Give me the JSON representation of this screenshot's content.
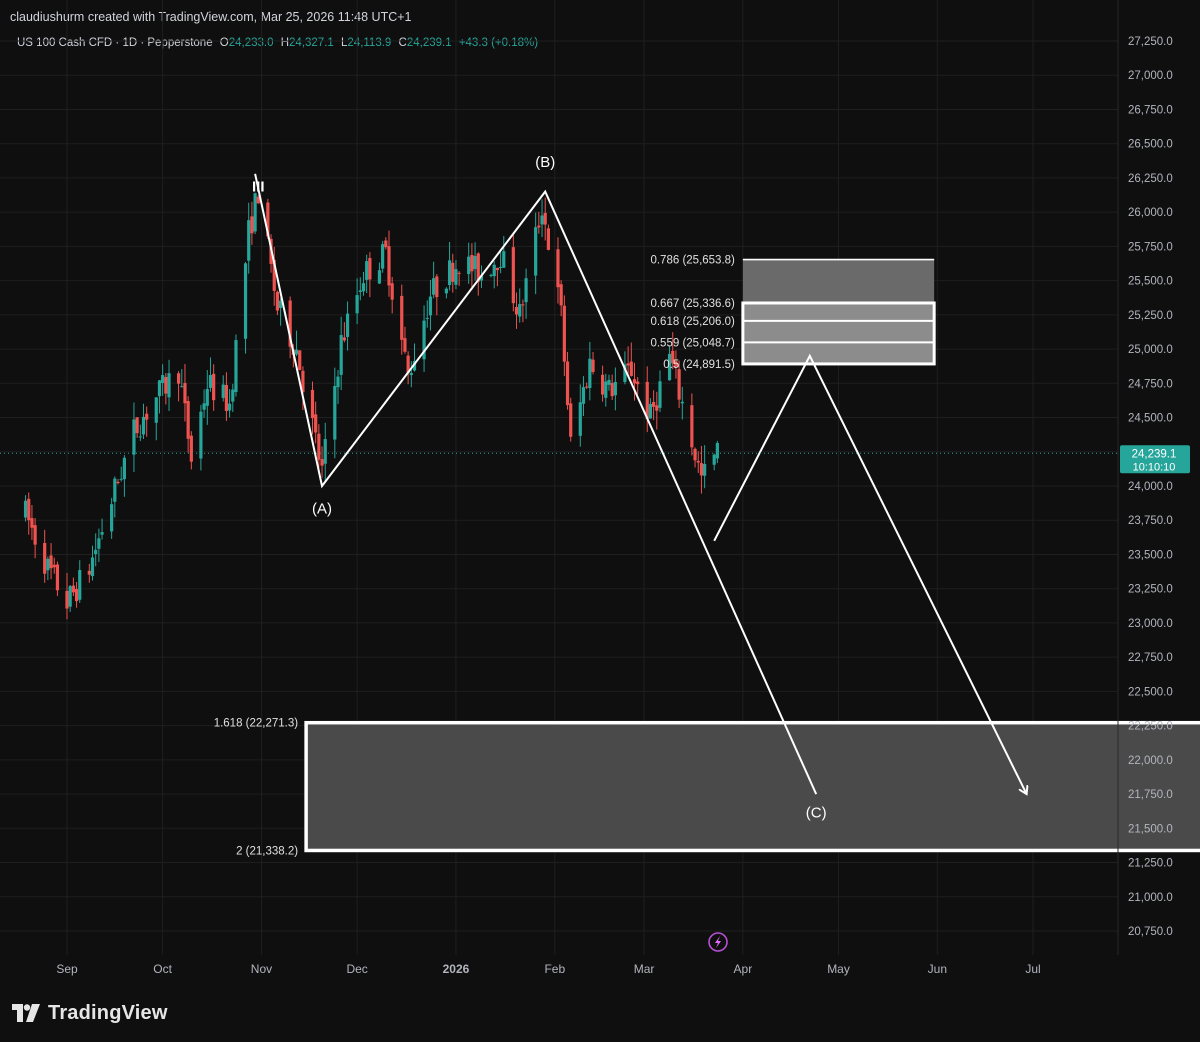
{
  "header": {
    "attribution": "claudiushurm created with TradingView.com, Mar 25, 2026 11:48 UTC+1"
  },
  "legend": {
    "symbol": "US 100 Cash CFD · 1D · Pepperstone",
    "open_label": "O",
    "open": "24,233.0",
    "high_label": "H",
    "high": "24,327.1",
    "low_label": "L",
    "low": "24,113.9",
    "close_label": "C",
    "close": "24,239.1",
    "change": "+43.3 (+0.18%)"
  },
  "footer": {
    "logo_text": "TradingView",
    "logo_icon": "tradingview-logo-icon"
  },
  "colors": {
    "background": "#0f0f0f",
    "grid": "#1f1f1f",
    "up": "#26a69a",
    "down": "#ef5350",
    "drawing": "#ffffff",
    "zone_fill": "#4a4a4a",
    "price_tag": "#26a69a"
  },
  "chart_data": {
    "type": "candlestick",
    "title": "",
    "xlabel": "",
    "ylabel": "",
    "ylim": [
      20600,
      27350
    ],
    "x_tick_labels": [
      "Sep",
      "Oct",
      "Nov",
      "Dec",
      "2026",
      "Feb",
      "Mar",
      "Apr",
      "May",
      "Jun",
      "Jul"
    ],
    "y_tick_labels": [
      "27,250.0",
      "27,000.0",
      "26,750.0",
      "26,500.0",
      "26,250.0",
      "26,000.0",
      "25,750.0",
      "25,500.0",
      "25,250.0",
      "25,000.0",
      "24,750.0",
      "24,500.0",
      "24,250.0",
      "24,000.0",
      "23,750.0",
      "23,500.0",
      "23,250.0",
      "23,000.0",
      "22,750.0",
      "22,500.0",
      "22,250.0",
      "22,000.0",
      "21,750.0",
      "21,500.0",
      "21,250.0",
      "21,000.0",
      "20,750.0"
    ],
    "y_tick_values": [
      27250,
      27000,
      26750,
      26500,
      26250,
      26000,
      25750,
      25500,
      25250,
      25000,
      24750,
      24500,
      24250,
      24000,
      23750,
      23500,
      23250,
      23000,
      22750,
      22500,
      22250,
      22000,
      21750,
      21500,
      21250,
      21000,
      20750
    ],
    "last_price": {
      "value": 24239.1,
      "label": "24,239.1",
      "countdown": "10:10:10"
    },
    "price_path": [
      [
        "2025-08-19",
        23800
      ],
      [
        "2025-08-26",
        23400
      ],
      [
        "2025-09-01",
        23150
      ],
      [
        "2025-09-08",
        23400
      ],
      [
        "2025-09-15",
        23900
      ],
      [
        "2025-09-22",
        24400
      ],
      [
        "2025-09-29",
        24650
      ],
      [
        "2025-10-06",
        24850
      ],
      [
        "2025-10-10",
        24200
      ],
      [
        "2025-10-15",
        24750
      ],
      [
        "2025-10-22",
        24600
      ],
      [
        "2025-10-28",
        25850
      ],
      [
        "2025-10-31",
        26150
      ],
      [
        "2025-11-06",
        25300
      ],
      [
        "2025-11-12",
        25000
      ],
      [
        "2025-11-20",
        24100
      ],
      [
        "2025-11-26",
        25050
      ],
      [
        "2025-12-03",
        25550
      ],
      [
        "2025-12-10",
        25700
      ],
      [
        "2025-12-17",
        24800
      ],
      [
        "2025-12-24",
        25400
      ],
      [
        "2026-01-02",
        25650
      ],
      [
        "2026-01-09",
        25550
      ],
      [
        "2026-01-15",
        25700
      ],
      [
        "2026-01-21",
        25250
      ],
      [
        "2026-01-28",
        26050
      ],
      [
        "2026-02-03",
        25250
      ],
      [
        "2026-02-06",
        24300
      ],
      [
        "2026-02-12",
        24900
      ],
      [
        "2026-02-18",
        24700
      ],
      [
        "2026-02-25",
        24850
      ],
      [
        "2026-03-03",
        24500
      ],
      [
        "2026-03-09",
        24950
      ],
      [
        "2026-03-13",
        24600
      ],
      [
        "2026-03-19",
        24050
      ],
      [
        "2026-03-24",
        24239
      ]
    ],
    "wave_labels": [
      {
        "text": "III",
        "date": "2025-10-31",
        "value": 26150
      },
      {
        "text": "(A)",
        "date": "2025-11-20",
        "value": 23800
      },
      {
        "text": "(B)",
        "date": "2026-01-29",
        "value": 26330
      },
      {
        "text": "(C)",
        "date": "2026-04-24",
        "value": 21580
      }
    ],
    "wave_lines": [
      {
        "name": "wave-1",
        "points": [
          [
            "2025-10-30",
            26280
          ],
          [
            "2025-11-20",
            24000
          ],
          [
            "2026-01-29",
            26150
          ],
          [
            "2026-04-24",
            21750
          ]
        ]
      },
      {
        "name": "wave-2",
        "points": [
          [
            "2026-03-23",
            23600
          ],
          [
            "2026-04-22",
            24950
          ],
          [
            "2026-06-29",
            21750
          ]
        ],
        "arrow": true
      }
    ],
    "fib_levels": [
      {
        "label": "0.786 (25,653.8)",
        "value": 25653.8
      },
      {
        "label": "0.667 (25,336.6)",
        "value": 25336.6
      },
      {
        "label": "0.618 (25,206.0)",
        "value": 25206.0
      },
      {
        "label": "0.559 (25,048.7)",
        "value": 25048.7
      },
      {
        "label": "0.5 (24,891.5)",
        "value": 24891.5
      }
    ],
    "fib_zone_dates": [
      "2026-04-01",
      "2026-05-31"
    ],
    "extension_levels": [
      {
        "label": "1.618 (22,271.3)",
        "value": 22271.3
      },
      {
        "label": "2 (21,338.2)",
        "value": 21338.2
      }
    ],
    "extension_zone_dates": [
      "2025-11-15",
      "2026-09-15"
    ]
  }
}
